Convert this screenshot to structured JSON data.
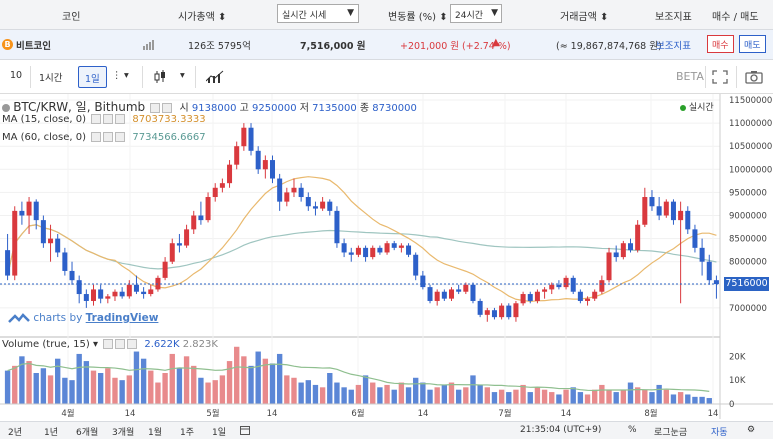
{
  "header": {
    "coin": "코인",
    "market_cap": "시가총액",
    "price_select": "실시간 시세",
    "change_label": "변동률 (%)",
    "period_select": "24시간",
    "volume": "거래금액",
    "indicators": "보조지표",
    "trade": "매수 / 매도"
  },
  "coin_row": {
    "name": "비트코인",
    "cap": "126조 5795억",
    "price": "7,516,000 원",
    "change": "+201,000 원 (+2.74 %)",
    "volume": "(≈ 19,867,874,768 원)",
    "indicator_btn": "보조지표",
    "buy": "매수",
    "sell": "매도"
  },
  "toolbar": {
    "interval_num": "10",
    "h1": "1시간",
    "d1": "1일",
    "beta": "BETA"
  },
  "chart_header": {
    "symbol": "BTC/KRW, 일, Bithumb",
    "o_label": "시",
    "o": "9138000",
    "h_label": "고",
    "h": "9250000",
    "l_label": "저",
    "l": "7135000",
    "c_label": "종",
    "c": "8730000",
    "realtime": "실시간",
    "ma15_label": "MA (15, close, 0)",
    "ma15_val": "8703733.3333",
    "ma60_label": "MA (60, close, 0)",
    "ma60_val": "7734566.6667",
    "vol_label": "Volume (true, 15)",
    "vol_val1": "2.622K",
    "vol_val2": "2.823K",
    "price_tag": "7516000",
    "watermark_a": "charts by ",
    "watermark_b": "TradingView"
  },
  "colors": {
    "up": "#d9393e",
    "down": "#2d60c9",
    "ma15": "#e9b96e",
    "ma60": "#9fc5c0",
    "price_line": "#2b63c4"
  },
  "chart_data": {
    "type": "candlestick",
    "x_ticks": [
      "4월",
      "14",
      "5월",
      "14",
      "6월",
      "14",
      "7월",
      "14",
      "8월",
      "14"
    ],
    "y_ticks": [
      "11500000",
      "11000000",
      "10500000",
      "10000000",
      "9500000",
      "9000000",
      "8500000",
      "8000000",
      "7500000",
      "7000000"
    ],
    "vol_ticks": [
      "20K",
      "10K",
      "0"
    ],
    "ohlc": [
      [
        8250000,
        8600000,
        7600000,
        7700000
      ],
      [
        7700000,
        9200000,
        7600000,
        9100000
      ],
      [
        9100000,
        9300000,
        8800000,
        9000000
      ],
      [
        9000000,
        9400000,
        8600000,
        9300000
      ],
      [
        9300000,
        9350000,
        8700000,
        8900000
      ],
      [
        8900000,
        9000000,
        8300000,
        8400000
      ],
      [
        8400000,
        8800000,
        8000000,
        8500000
      ],
      [
        8500000,
        8600000,
        8100000,
        8200000
      ],
      [
        8200000,
        8300000,
        7700000,
        7800000
      ],
      [
        7800000,
        8000000,
        7500000,
        7600000
      ],
      [
        7600000,
        7700000,
        7100000,
        7300000
      ],
      [
        7300000,
        7400000,
        7000000,
        7150000
      ],
      [
        7150000,
        7500000,
        7050000,
        7400000
      ],
      [
        7400000,
        7500000,
        7100000,
        7200000
      ],
      [
        7200000,
        7300000,
        7100000,
        7250000
      ],
      [
        7250000,
        7400000,
        7150000,
        7350000
      ],
      [
        7350000,
        7450000,
        7200000,
        7250000
      ],
      [
        7250000,
        7600000,
        7200000,
        7500000
      ],
      [
        7500000,
        7700000,
        7300000,
        7350000
      ],
      [
        7350000,
        7450000,
        7200000,
        7300000
      ],
      [
        7300000,
        7500000,
        7250000,
        7400000
      ],
      [
        7400000,
        7700000,
        7350000,
        7650000
      ],
      [
        7650000,
        8100000,
        7600000,
        8000000
      ],
      [
        8000000,
        8500000,
        7950000,
        8400000
      ],
      [
        8400000,
        8600000,
        8200000,
        8350000
      ],
      [
        8350000,
        8800000,
        8300000,
        8700000
      ],
      [
        8700000,
        9100000,
        8600000,
        9000000
      ],
      [
        9000000,
        9300000,
        8800000,
        8900000
      ],
      [
        8900000,
        9500000,
        8850000,
        9400000
      ],
      [
        9400000,
        9700000,
        9300000,
        9600000
      ],
      [
        9600000,
        9800000,
        9500000,
        9700000
      ],
      [
        9700000,
        10200000,
        9600000,
        10100000
      ],
      [
        10100000,
        10600000,
        10000000,
        10500000
      ],
      [
        10500000,
        11000000,
        10400000,
        10900000
      ],
      [
        10900000,
        11000000,
        10300000,
        10400000
      ],
      [
        10400000,
        10500000,
        9900000,
        10000000
      ],
      [
        10000000,
        10300000,
        9800000,
        10200000
      ],
      [
        10200000,
        10300000,
        9700000,
        9800000
      ],
      [
        9800000,
        9900000,
        9100000,
        9300000
      ],
      [
        9300000,
        9600000,
        9200000,
        9500000
      ],
      [
        9500000,
        9800000,
        9400000,
        9600000
      ],
      [
        9600000,
        9700000,
        9300000,
        9400000
      ],
      [
        9400000,
        9500000,
        9100000,
        9200000
      ],
      [
        9200000,
        9300000,
        9000000,
        9150000
      ],
      [
        9150000,
        9400000,
        9100000,
        9300000
      ],
      [
        9300000,
        9350000,
        9000000,
        9100000
      ],
      [
        9100000,
        9200000,
        8300000,
        8400000
      ],
      [
        8400000,
        8500000,
        8100000,
        8200000
      ],
      [
        8200000,
        8300000,
        8000000,
        8150000
      ],
      [
        8150000,
        8350000,
        8100000,
        8300000
      ],
      [
        8300000,
        8350000,
        8000000,
        8100000
      ],
      [
        8100000,
        8350000,
        8050000,
        8300000
      ],
      [
        8300000,
        8350000,
        8150000,
        8200000
      ],
      [
        8200000,
        8450000,
        8150000,
        8400000
      ],
      [
        8400000,
        8450000,
        8250000,
        8300000
      ],
      [
        8300000,
        8400000,
        8200000,
        8350000
      ],
      [
        8350000,
        8400000,
        8100000,
        8150000
      ],
      [
        8150000,
        8200000,
        7600000,
        7700000
      ],
      [
        7700000,
        7800000,
        7400000,
        7450000
      ],
      [
        7450000,
        7500000,
        7100000,
        7150000
      ],
      [
        7150000,
        7400000,
        7050000,
        7350000
      ],
      [
        7350000,
        7400000,
        7150000,
        7200000
      ],
      [
        7200000,
        7450000,
        7150000,
        7400000
      ],
      [
        7400000,
        7500000,
        7300000,
        7350000
      ],
      [
        7350000,
        7550000,
        7300000,
        7500000
      ],
      [
        7500000,
        7550000,
        7100000,
        7150000
      ],
      [
        7150000,
        7200000,
        6800000,
        6850000
      ],
      [
        6850000,
        7000000,
        6700000,
        6950000
      ],
      [
        6950000,
        7000000,
        6750000,
        6800000
      ],
      [
        6800000,
        7100000,
        6750000,
        7050000
      ],
      [
        7050000,
        7100000,
        6750000,
        6800000
      ],
      [
        6800000,
        7150000,
        6700000,
        7100000
      ],
      [
        7100000,
        7350000,
        7050000,
        7300000
      ],
      [
        7300000,
        7350000,
        7100000,
        7150000
      ],
      [
        7150000,
        7400000,
        7100000,
        7350000
      ],
      [
        7350000,
        7450000,
        7200000,
        7400000
      ],
      [
        7400000,
        7550000,
        7300000,
        7500000
      ],
      [
        7500000,
        7600000,
        7400000,
        7450000
      ],
      [
        7450000,
        7700000,
        7400000,
        7650000
      ],
      [
        7650000,
        7700000,
        7300000,
        7350000
      ],
      [
        7350000,
        7400000,
        7100000,
        7150000
      ],
      [
        7150000,
        7250000,
        7050000,
        7200000
      ],
      [
        7200000,
        7400000,
        7150000,
        7350000
      ],
      [
        7350000,
        7700000,
        7300000,
        7600000
      ],
      [
        7600000,
        8300000,
        7550000,
        8200000
      ],
      [
        8200000,
        8350000,
        8000000,
        8100000
      ],
      [
        8100000,
        8450000,
        8050000,
        8400000
      ],
      [
        8400000,
        8500000,
        8200000,
        8250000
      ],
      [
        8250000,
        8900000,
        8200000,
        8800000
      ],
      [
        8800000,
        9600000,
        8750000,
        9400000
      ],
      [
        9400000,
        9550000,
        9100000,
        9200000
      ],
      [
        9200000,
        9400000,
        8900000,
        9000000
      ],
      [
        9000000,
        9350000,
        8950000,
        9300000
      ],
      [
        9300000,
        9350000,
        8800000,
        8900000
      ],
      [
        8900000,
        9300000,
        7100000,
        9100000
      ],
      [
        9100000,
        9200000,
        8600000,
        8700000
      ],
      [
        8700000,
        8800000,
        8200000,
        8300000
      ],
      [
        8300000,
        8500000,
        7700000,
        8000000
      ],
      [
        8000000,
        8150000,
        7500000,
        7600000
      ],
      [
        7600000,
        7700000,
        7200000,
        7516000
      ]
    ],
    "volumes": [
      14000,
      16000,
      20000,
      18000,
      13000,
      15000,
      12000,
      19000,
      11000,
      10000,
      21000,
      18000,
      14000,
      13000,
      15000,
      11000,
      10000,
      12000,
      22000,
      19000,
      14000,
      9000,
      13000,
      21000,
      15000,
      20000,
      16000,
      11000,
      9000,
      10000,
      12000,
      18000,
      24000,
      20000,
      16000,
      22000,
      19000,
      17000,
      21000,
      12000,
      11000,
      9000,
      10000,
      8000,
      7000,
      13000,
      9000,
      7000,
      6000,
      8000,
      12000,
      9000,
      7000,
      8000,
      6000,
      9000,
      7000,
      11000,
      9000,
      6000,
      7000,
      8000,
      9000,
      6000,
      7000,
      12000,
      8000,
      7000,
      5000,
      6000,
      5000,
      6000,
      8000,
      5000,
      7000,
      6000,
      5000,
      4000,
      6000,
      7000,
      5000,
      4000,
      6000,
      8000,
      6000,
      5000,
      6000,
      9000,
      7000,
      6000,
      5000,
      8000,
      6000,
      4000,
      5000,
      4000,
      3000,
      3000,
      2500
    ]
  },
  "bottom_bar": {
    "r2y": "2년",
    "r1y": "1년",
    "r6m": "6개월",
    "r3m": "3개월",
    "r1m": "1월",
    "r1w": "1주",
    "r1d": "1일",
    "time": "21:35:04 (UTC+9)",
    "pct": "%",
    "log": "로그눈금",
    "auto": "자동"
  }
}
